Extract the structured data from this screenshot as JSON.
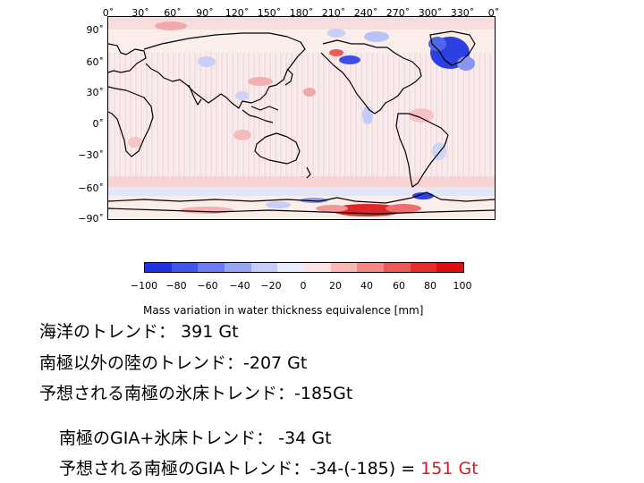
{
  "map": {
    "lon_ticks": [
      "0˚",
      "30˚",
      "60˚",
      "90˚",
      "120˚",
      "150˚",
      "180˚",
      "210˚",
      "240˚",
      "270˚",
      "300˚",
      "330˚",
      "0˚"
    ],
    "lat_ticks": [
      "90˚",
      "60˚",
      "30˚",
      "0˚",
      "−30˚",
      "−60˚",
      "−90˚"
    ]
  },
  "colorbar": {
    "ticks": [
      "−100",
      "−80",
      "−60",
      "−40",
      "−20",
      "0",
      "20",
      "40",
      "60",
      "80",
      "100"
    ],
    "label": "Mass variation in water thickness equivalence [mm]",
    "colors": [
      "#1f33e0",
      "#4056ea",
      "#6b7df0",
      "#98a5f4",
      "#c4ccf8",
      "#e9ecfc",
      "#fde4e2",
      "#f8b8b6",
      "#f38886",
      "#ec5a58",
      "#e52d2b",
      "#de0f0f"
    ]
  },
  "text": {
    "line1": "海洋のトレンド：  391 Gt",
    "line2": "南極以外の陸のトレンド：-207 Gt",
    "line3": "予想される南極の氷床トレンド：-185Gt",
    "line4": "南極のGIA+氷床トレンド：  -34 Gt",
    "line5_prefix": "予想される南極のGIAトレンド：-34-(-185) = ",
    "line5_value": "151 Gt"
  }
}
